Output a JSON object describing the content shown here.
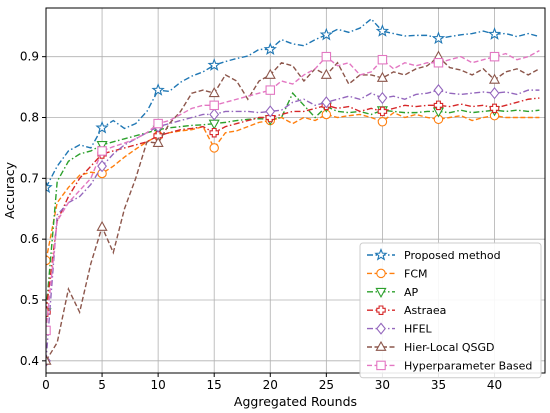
{
  "chart_data": {
    "type": "line",
    "title": "",
    "xlabel": "Aggregated Rounds",
    "ylabel": "Accuracy",
    "xlim": [
      0,
      44.5
    ],
    "ylim": [
      0.38,
      0.98
    ],
    "xticks": [
      0,
      5,
      10,
      15,
      20,
      25,
      30,
      35,
      40
    ],
    "yticks": [
      0.4,
      0.5,
      0.6,
      0.7,
      0.8,
      0.9
    ],
    "grid": true,
    "legend_position": "lower-right",
    "series": [
      {
        "name": "Proposed method",
        "color": "#1f77b4",
        "dash": "dashdot",
        "marker": "star",
        "x": [
          0,
          1,
          2,
          3,
          4,
          5,
          6,
          7,
          8,
          9,
          10,
          11,
          12,
          13,
          14,
          15,
          16,
          17,
          18,
          19,
          20,
          21,
          22,
          23,
          24,
          25,
          26,
          27,
          28,
          29,
          30,
          31,
          32,
          33,
          34,
          35,
          36,
          37,
          38,
          39,
          40,
          41,
          42,
          43,
          44
        ],
        "y": [
          0.685,
          0.72,
          0.745,
          0.755,
          0.75,
          0.783,
          0.795,
          0.782,
          0.79,
          0.81,
          0.845,
          0.843,
          0.858,
          0.868,
          0.875,
          0.886,
          0.892,
          0.897,
          0.901,
          0.912,
          0.912,
          0.928,
          0.921,
          0.918,
          0.928,
          0.936,
          0.945,
          0.94,
          0.947,
          0.962,
          0.942,
          0.938,
          0.934,
          0.935,
          0.935,
          0.93,
          0.933,
          0.936,
          0.938,
          0.942,
          0.937,
          0.938,
          0.933,
          0.938,
          0.933
        ]
      },
      {
        "name": "FCM",
        "color": "#ff7f0e",
        "dash": "dashed",
        "marker": "circle",
        "x": [
          0,
          1,
          2,
          3,
          4,
          5,
          6,
          7,
          8,
          9,
          10,
          11,
          12,
          13,
          14,
          15,
          16,
          17,
          18,
          19,
          20,
          21,
          22,
          23,
          24,
          25,
          26,
          27,
          28,
          29,
          30,
          31,
          32,
          33,
          34,
          35,
          36,
          37,
          38,
          39,
          40,
          41,
          42,
          43,
          44
        ],
        "y": [
          0.565,
          0.66,
          0.685,
          0.705,
          0.71,
          0.708,
          0.72,
          0.735,
          0.748,
          0.76,
          0.77,
          0.775,
          0.778,
          0.78,
          0.785,
          0.75,
          0.775,
          0.778,
          0.785,
          0.792,
          0.795,
          0.8,
          0.79,
          0.8,
          0.795,
          0.805,
          0.8,
          0.803,
          0.805,
          0.8,
          0.793,
          0.808,
          0.8,
          0.805,
          0.8,
          0.797,
          0.8,
          0.803,
          0.795,
          0.8,
          0.803,
          0.8,
          0.8,
          0.8,
          0.8
        ]
      },
      {
        "name": "AP",
        "color": "#2ca02c",
        "dash": "dashdot",
        "marker": "triangle-down",
        "x": [
          0,
          1,
          2,
          3,
          4,
          5,
          6,
          7,
          8,
          9,
          10,
          11,
          12,
          13,
          14,
          15,
          16,
          17,
          18,
          19,
          20,
          21,
          22,
          23,
          24,
          25,
          26,
          27,
          28,
          29,
          30,
          31,
          32,
          33,
          34,
          35,
          36,
          37,
          38,
          39,
          40,
          41,
          42,
          43,
          44
        ],
        "y": [
          0.48,
          0.695,
          0.728,
          0.74,
          0.745,
          0.755,
          0.76,
          0.765,
          0.77,
          0.775,
          0.78,
          0.783,
          0.785,
          0.787,
          0.788,
          0.79,
          0.792,
          0.795,
          0.797,
          0.798,
          0.797,
          0.8,
          0.84,
          0.82,
          0.8,
          0.818,
          0.81,
          0.808,
          0.81,
          0.805,
          0.812,
          0.81,
          0.808,
          0.808,
          0.81,
          0.81,
          0.808,
          0.812,
          0.808,
          0.81,
          0.812,
          0.81,
          0.812,
          0.81,
          0.812
        ]
      },
      {
        "name": "Astraea",
        "color": "#d62728",
        "dash": "dashdot",
        "marker": "plus-square",
        "x": [
          0,
          1,
          2,
          3,
          4,
          5,
          6,
          7,
          8,
          9,
          10,
          11,
          12,
          13,
          14,
          15,
          16,
          17,
          18,
          19,
          20,
          21,
          22,
          23,
          24,
          25,
          26,
          27,
          28,
          29,
          30,
          31,
          32,
          33,
          34,
          35,
          36,
          37,
          38,
          39,
          40,
          41,
          42,
          43,
          44
        ],
        "y": [
          0.48,
          0.63,
          0.67,
          0.7,
          0.72,
          0.74,
          0.745,
          0.75,
          0.755,
          0.76,
          0.77,
          0.775,
          0.78,
          0.782,
          0.785,
          0.775,
          0.785,
          0.79,
          0.795,
          0.8,
          0.8,
          0.805,
          0.81,
          0.81,
          0.815,
          0.82,
          0.815,
          0.818,
          0.81,
          0.815,
          0.81,
          0.815,
          0.82,
          0.818,
          0.82,
          0.82,
          0.818,
          0.822,
          0.818,
          0.82,
          0.815,
          0.82,
          0.825,
          0.83,
          0.832
        ]
      },
      {
        "name": "HFEL",
        "color": "#9467bd",
        "dash": "dashdot",
        "marker": "diamond",
        "x": [
          0,
          1,
          2,
          3,
          4,
          5,
          6,
          7,
          8,
          9,
          10,
          11,
          12,
          13,
          14,
          15,
          16,
          17,
          18,
          19,
          20,
          21,
          22,
          23,
          24,
          25,
          26,
          27,
          28,
          29,
          30,
          31,
          32,
          33,
          34,
          35,
          36,
          37,
          38,
          39,
          40,
          41,
          42,
          43,
          44
        ],
        "y": [
          0.4,
          0.64,
          0.66,
          0.67,
          0.69,
          0.72,
          0.74,
          0.755,
          0.765,
          0.775,
          0.785,
          0.79,
          0.795,
          0.8,
          0.805,
          0.805,
          0.81,
          0.81,
          0.81,
          0.808,
          0.81,
          0.812,
          0.825,
          0.83,
          0.82,
          0.825,
          0.83,
          0.835,
          0.83,
          0.84,
          0.832,
          0.835,
          0.83,
          0.838,
          0.84,
          0.845,
          0.84,
          0.838,
          0.84,
          0.842,
          0.84,
          0.842,
          0.838,
          0.845,
          0.845
        ]
      },
      {
        "name": "Hier-Local QSGD",
        "color": "#8c564b",
        "dash": "dashed",
        "marker": "triangle-up",
        "x": [
          0,
          1,
          2,
          3,
          4,
          5,
          6,
          7,
          8,
          9,
          10,
          11,
          12,
          13,
          14,
          15,
          16,
          17,
          18,
          19,
          20,
          21,
          22,
          23,
          24,
          25,
          26,
          27,
          28,
          29,
          30,
          31,
          32,
          33,
          34,
          35,
          36,
          37,
          38,
          39,
          40,
          41,
          42,
          43,
          44
        ],
        "y": [
          0.4,
          0.43,
          0.518,
          0.48,
          0.56,
          0.62,
          0.578,
          0.65,
          0.7,
          0.76,
          0.758,
          0.79,
          0.81,
          0.84,
          0.845,
          0.84,
          0.87,
          0.86,
          0.83,
          0.86,
          0.87,
          0.89,
          0.885,
          0.86,
          0.88,
          0.87,
          0.89,
          0.855,
          0.87,
          0.87,
          0.865,
          0.875,
          0.87,
          0.88,
          0.885,
          0.9,
          0.882,
          0.878,
          0.87,
          0.88,
          0.862,
          0.875,
          0.88,
          0.87,
          0.88
        ]
      },
      {
        "name": "Hyperparameter Based",
        "color": "#e377c2",
        "dash": "dashed",
        "marker": "square",
        "x": [
          0,
          1,
          2,
          3,
          4,
          5,
          6,
          7,
          8,
          9,
          10,
          11,
          12,
          13,
          14,
          15,
          16,
          17,
          18,
          19,
          20,
          21,
          22,
          23,
          24,
          25,
          26,
          27,
          28,
          29,
          30,
          31,
          32,
          33,
          34,
          35,
          36,
          37,
          38,
          39,
          40,
          41,
          42,
          43,
          44
        ],
        "y": [
          0.45,
          0.63,
          0.66,
          0.68,
          0.7,
          0.745,
          0.752,
          0.758,
          0.765,
          0.775,
          0.79,
          0.795,
          0.805,
          0.815,
          0.82,
          0.82,
          0.825,
          0.83,
          0.835,
          0.84,
          0.845,
          0.86,
          0.855,
          0.87,
          0.88,
          0.9,
          0.885,
          0.89,
          0.87,
          0.875,
          0.895,
          0.88,
          0.89,
          0.885,
          0.89,
          0.89,
          0.895,
          0.9,
          0.89,
          0.895,
          0.9,
          0.905,
          0.895,
          0.9,
          0.91
        ]
      }
    ]
  }
}
